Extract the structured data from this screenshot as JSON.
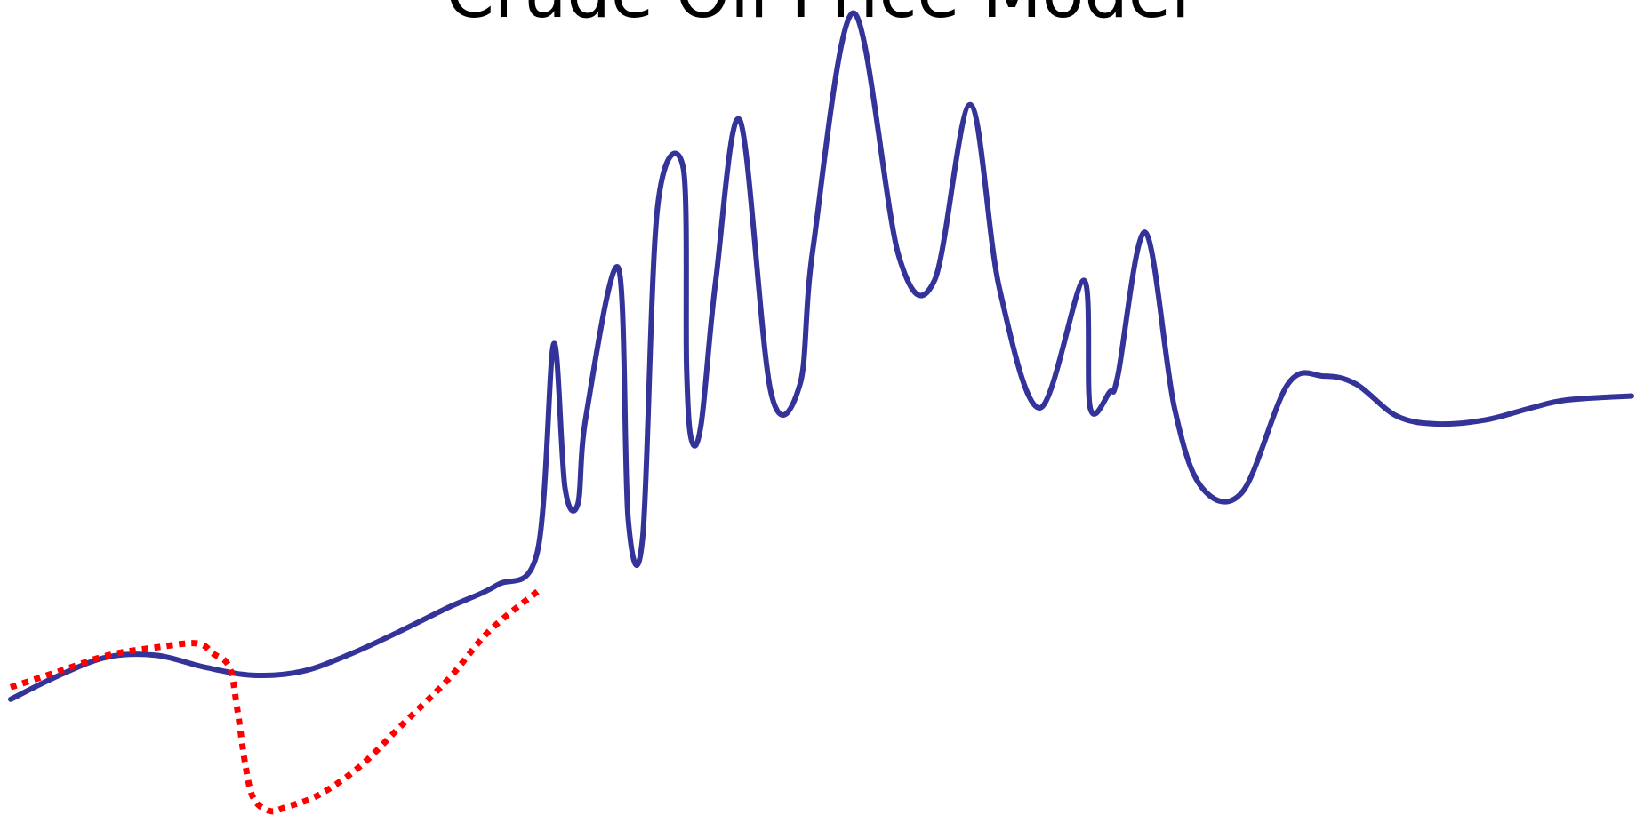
{
  "chart_data": {
    "type": "line",
    "title": "Crude Oil Price Model",
    "xlabel": "",
    "ylabel": "",
    "xlim": [
      0,
      100
    ],
    "ylim": [
      0,
      100
    ],
    "grid": false,
    "legend": "none",
    "series": [
      {
        "color": "#333399",
        "style": "solid",
        "x": [
          0,
          3,
          6,
          9,
          12,
          15,
          18,
          21,
          24,
          27,
          30,
          32.5,
          33.5,
          34.2,
          35.0,
          35.5,
          37.5,
          38.1,
          39.0,
          39.9,
          41.5,
          41.7,
          42.0,
          42.6,
          43.5,
          45.0,
          46.9,
          48.7,
          49.5,
          52.0,
          54.8,
          57.0,
          59.2,
          61.0,
          63.5,
          66.2,
          66.6,
          67.8,
          68.3,
          70.0,
          71.8,
          73.5,
          76.0,
          78.8,
          81.0,
          83.0,
          85.5,
          88.0,
          91.0,
          93.8,
          96.0,
          100.0
        ],
        "y": [
          13.5,
          16.5,
          18.8,
          19.0,
          17.5,
          16.5,
          17.0,
          19.2,
          22.0,
          25.0,
          27.8,
          32.0,
          58.0,
          40.0,
          38.0,
          49.0,
          67.5,
          36.0,
          34.0,
          75.0,
          80.0,
          55.0,
          46.0,
          48.0,
          66.0,
          86.0,
          52.0,
          53.0,
          70.0,
          99.5,
          69.0,
          66.0,
          88.0,
          65.0,
          50.0,
          66.0,
          50.0,
          52.0,
          54.0,
          72.0,
          50.0,
          40.0,
          39.5,
          53.0,
          54.0,
          53.0,
          49.0,
          48.0,
          48.5,
          50.0,
          51.0,
          51.5
        ]
      },
      {
        "color": "#ff0000",
        "style": "dotted",
        "x": [
          0,
          3,
          6,
          9,
          11.5,
          12.5,
          13.5,
          14.0,
          14.5,
          15.0,
          16.0,
          17.0,
          19.0,
          21.5,
          24.0,
          27.0,
          29.5,
          32.5
        ],
        "y": [
          15.0,
          17.0,
          19.0,
          20.0,
          20.5,
          19.2,
          17.5,
          12.0,
          5.0,
          1.0,
          -0.5,
          0.0,
          1.5,
          5.0,
          10.0,
          16.0,
          22.0,
          27.0
        ]
      }
    ]
  }
}
